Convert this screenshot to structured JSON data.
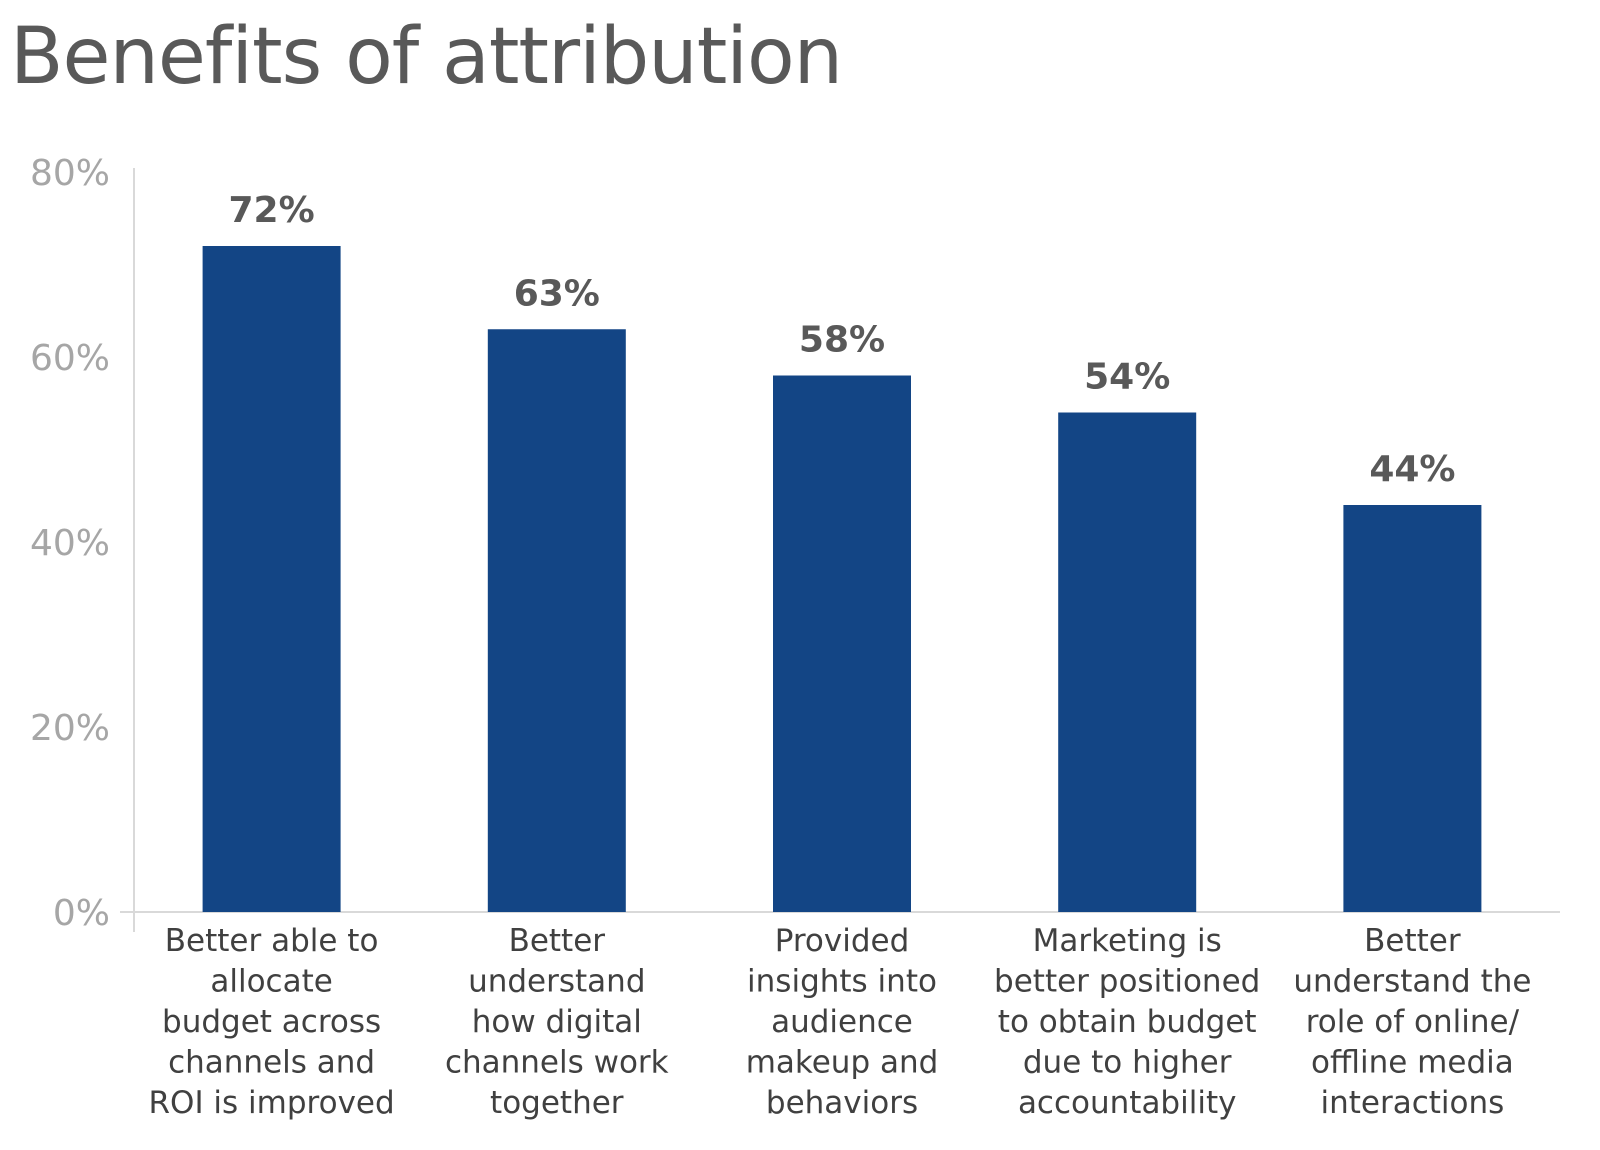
{
  "chart_data": {
    "type": "bar",
    "title": "Benefits of attribution",
    "xlabel": "",
    "ylabel": "",
    "ylim": [
      0,
      80
    ],
    "yticks": [
      "0%",
      "20%",
      "40%",
      "60%",
      "80%"
    ],
    "ytick_values": [
      0,
      20,
      40,
      60,
      80
    ],
    "grid": false,
    "bar_color": "#134585",
    "categories": [
      [
        "Better able to",
        "allocate",
        "budget across",
        "channels and",
        "ROI is improved"
      ],
      [
        "Better",
        "understand",
        "how digital",
        "channels work",
        "together"
      ],
      [
        "Provided",
        "insights into",
        "audience",
        "makeup and",
        "behaviors"
      ],
      [
        "Marketing is",
        "better positioned",
        "to obtain budget",
        "due to higher",
        "accountability"
      ],
      [
        "Better",
        "understand the",
        "role of online/",
        "offline media",
        "interactions"
      ]
    ],
    "values": [
      72,
      63,
      58,
      54,
      44
    ],
    "data_labels": [
      "72%",
      "63%",
      "58%",
      "54%",
      "44%"
    ]
  }
}
